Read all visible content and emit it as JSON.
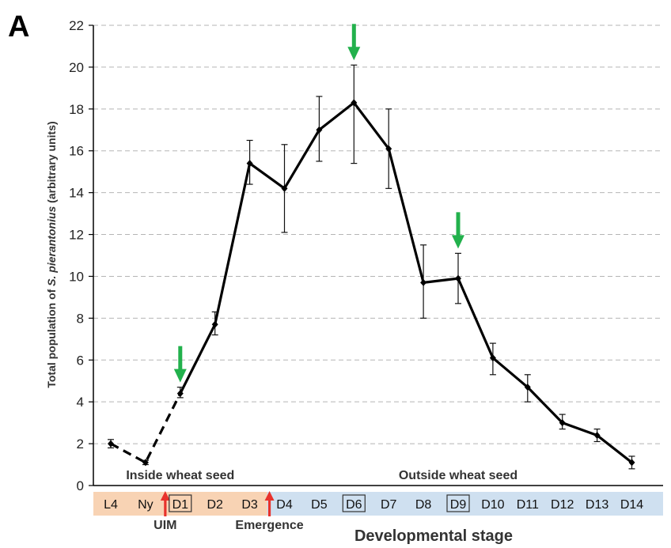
{
  "panel_letter": "A",
  "chart_data": {
    "type": "line",
    "xlabel": "Developmental stage",
    "ylabel": "Total population of S. pierantonius (arbitrary units)",
    "ylabel_parts": [
      "Total population of ",
      "S. pierantonius",
      " (arbitrary units)"
    ],
    "ylim": [
      0,
      22
    ],
    "yticks": [
      0,
      2,
      4,
      6,
      8,
      10,
      12,
      14,
      16,
      18,
      20,
      22
    ],
    "grid": "horizontal dashed",
    "categories": [
      "L4",
      "Ny",
      "D1",
      "D2",
      "D3",
      "D4",
      "D5",
      "D6",
      "D7",
      "D8",
      "D9",
      "D10",
      "D11",
      "D12",
      "D13",
      "D14"
    ],
    "boxed_categories": [
      "D1",
      "D6",
      "D9"
    ],
    "values": [
      2.0,
      1.1,
      4.4,
      7.7,
      15.4,
      14.2,
      17.0,
      18.3,
      16.1,
      9.7,
      9.9,
      6.1,
      4.7,
      3.0,
      2.4,
      1.1
    ],
    "error_low": [
      1.8,
      1.0,
      4.2,
      7.2,
      14.4,
      12.1,
      15.5,
      15.4,
      14.2,
      8.0,
      8.7,
      5.3,
      4.0,
      2.7,
      2.1,
      0.8
    ],
    "error_high": [
      2.2,
      1.2,
      4.7,
      8.3,
      16.5,
      16.3,
      18.6,
      20.1,
      18.0,
      11.5,
      11.1,
      6.8,
      5.3,
      3.4,
      2.7,
      1.4
    ],
    "dashed_segment_categories": [
      "L4",
      "Ny",
      "D1"
    ],
    "green_arrows_at": [
      "D1",
      "D6",
      "D9"
    ],
    "regions": [
      {
        "label": "Inside wheat seed",
        "from": "L4",
        "to": "D3",
        "color": "#f8d3b4"
      },
      {
        "label": "Outside wheat seed",
        "from": "D4",
        "to": "D14",
        "color": "#cfe0f0"
      }
    ],
    "events": [
      {
        "label": "UIM",
        "between": [
          "Ny",
          "D1"
        ]
      },
      {
        "label": "Emergence",
        "between": [
          "D3",
          "D4"
        ]
      }
    ],
    "colors": {
      "line": "#000000",
      "grid": "#b5b5b5",
      "green_arrow": "#22b14c",
      "red_arrow": "#e8322c",
      "box": "#333333"
    }
  }
}
